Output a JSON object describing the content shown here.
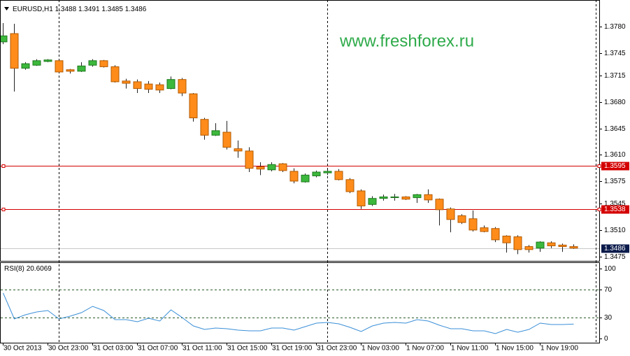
{
  "chart_data": {
    "type": "candlestick",
    "symbol": "EURUSD,H1",
    "watermark": "www.freshforex.ru",
    "categories": [
      "30 Oct 2013",
      null,
      null,
      null,
      "30 Oct 23:00",
      null,
      null,
      null,
      "31 Oct 03:00",
      null,
      null,
      null,
      "31 Oct 07:00",
      null,
      null,
      null,
      "31 Oct 11:00",
      null,
      null,
      null,
      "31 Oct 15:00",
      null,
      null,
      null,
      "31 Oct 19:00",
      null,
      null,
      null,
      "31 Oct 23:00",
      null,
      null,
      null,
      "1 Nov 03:00",
      null,
      null,
      null,
      "1 Nov 07:00",
      null,
      null,
      null,
      "1 Nov 11:00",
      null,
      null,
      null,
      "1 Nov 15:00",
      null,
      null,
      null,
      "1 Nov 19:00",
      null,
      null,
      null
    ],
    "open": [
      1.376,
      1.3771,
      1.3725,
      1.3729,
      1.3734,
      1.3735,
      1.3723,
      1.3721,
      1.3729,
      1.3735,
      1.3727,
      1.3708,
      1.3707,
      1.3704,
      1.3703,
      1.3698,
      1.371,
      1.3691,
      1.3657,
      1.3636,
      1.364,
      1.3618,
      1.3615,
      1.3594,
      1.359,
      1.3598,
      1.3588,
      1.3574,
      1.3582,
      1.3586,
      1.3588,
      1.3577,
      1.3562,
      1.3544,
      1.3552,
      1.3554,
      1.3554,
      1.3553,
      1.3557,
      1.3551,
      1.3538,
      1.3529,
      1.3525,
      1.3513,
      1.3512,
      1.3502,
      1.3501,
      1.3488,
      1.3486,
      1.3493,
      1.349,
      1.3488
    ],
    "high": [
      1.3785,
      1.3784,
      1.3733,
      1.3737,
      1.3737,
      1.3736,
      1.3724,
      1.3733,
      1.3737,
      1.3736,
      1.3729,
      1.3711,
      1.371,
      1.3708,
      1.3706,
      1.3714,
      1.3712,
      1.3692,
      1.3659,
      1.3652,
      1.3655,
      1.3629,
      1.362,
      1.36,
      1.36,
      1.3599,
      1.3592,
      1.3585,
      1.3589,
      1.359,
      1.3591,
      1.3579,
      1.3564,
      1.3555,
      1.3557,
      1.3558,
      1.3555,
      1.3558,
      1.3564,
      1.3552,
      1.354,
      1.3531,
      1.3536,
      1.3516,
      1.3514,
      1.3503,
      1.3503,
      1.349,
      1.3495,
      1.3495,
      1.3492,
      1.3491
    ],
    "low": [
      1.3757,
      1.3694,
      1.3723,
      1.3728,
      1.3733,
      1.3719,
      1.3718,
      1.372,
      1.3727,
      1.3726,
      1.3706,
      1.3698,
      1.3692,
      1.3692,
      1.3692,
      1.3697,
      1.3688,
      1.3654,
      1.363,
      1.3635,
      1.3617,
      1.3606,
      1.3587,
      1.3583,
      1.3588,
      1.3587,
      1.3572,
      1.3573,
      1.358,
      1.3583,
      1.3576,
      1.3559,
      1.3538,
      1.3542,
      1.3549,
      1.3549,
      1.355,
      1.3546,
      1.3546,
      1.3516,
      1.3507,
      1.3518,
      1.3508,
      1.3507,
      1.3494,
      1.348,
      1.3478,
      1.348,
      1.3481,
      1.3486,
      1.3481,
      1.3485
    ],
    "close": [
      1.3768,
      1.3725,
      1.3731,
      1.3735,
      1.3736,
      1.372,
      1.3721,
      1.3728,
      1.3735,
      1.3727,
      1.3707,
      1.3705,
      1.3698,
      1.3697,
      1.3696,
      1.371,
      1.3692,
      1.3659,
      1.3636,
      1.3642,
      1.362,
      1.3615,
      1.3592,
      1.3591,
      1.3597,
      1.3589,
      1.3575,
      1.3583,
      1.3587,
      1.3588,
      1.3577,
      1.3561,
      1.3542,
      1.3552,
      1.3554,
      1.3554,
      1.3551,
      1.3557,
      1.355,
      1.3537,
      1.3524,
      1.352,
      1.351,
      1.3508,
      1.3497,
      1.3493,
      1.3484,
      1.3484,
      1.3494,
      1.3489,
      1.3488,
      1.3486
    ],
    "up_color": "#3cb83c",
    "down_color": "#ff8c1a",
    "ylim": [
      1.3469,
      1.3811
    ],
    "yticks": [
      1.3475,
      {
        "value": 1.351,
        "label": "1.3510"
      },
      1.3545,
      1.3575,
      {
        "value": 1.361,
        "label": "1.3610"
      },
      1.3645,
      {
        "value": 1.368,
        "label": "1.3680"
      },
      1.3715,
      1.3745,
      {
        "value": 1.378,
        "label": "1.3780"
      }
    ],
    "hlines": [
      1.3595,
      1.3538
    ],
    "hline_color": "#d40000",
    "indicator": {
      "name": "RSI(8)",
      "values": [
        65,
        28,
        34,
        38,
        40,
        28,
        32,
        37,
        46,
        40,
        27,
        27,
        24,
        29,
        25,
        41,
        30,
        18,
        13,
        15,
        14,
        12,
        11,
        11,
        15,
        15,
        12,
        17,
        22,
        23,
        21,
        16,
        10,
        18,
        22,
        23,
        22,
        27,
        25,
        19,
        14,
        14,
        11,
        11,
        7,
        13,
        9,
        13,
        22,
        20,
        20,
        20.6069
      ],
      "color": "#3a8fd8",
      "ylim": [
        -6,
        107
      ],
      "yticks": [
        0,
        30,
        70,
        100
      ],
      "levels": [
        30,
        70
      ]
    }
  }
}
